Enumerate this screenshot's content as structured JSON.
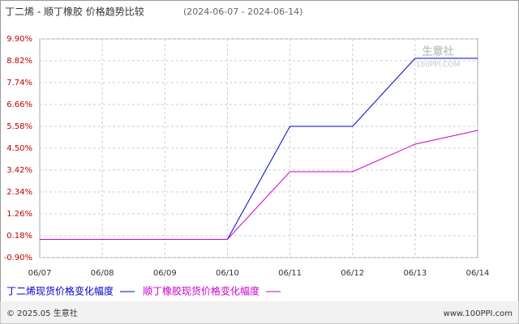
{
  "chart_data": {
    "type": "line",
    "title": "丁二烯 - 顺丁橡胶 价格趋势比较",
    "subtitle": "(2024-06-07 - 2024-06-14)",
    "x": [
      "06/07",
      "06/08",
      "06/09",
      "06/10",
      "06/11",
      "06/12",
      "06/13",
      "06/14"
    ],
    "series": [
      {
        "name": "丁二烯现货价格变化幅度",
        "color": "#0000cc",
        "values": [
          0,
          0,
          0,
          0,
          5.58,
          5.58,
          8.94,
          8.94
        ]
      },
      {
        "name": "顺丁橡胶现货价格变化幅度",
        "color": "#cc00cc",
        "values": [
          0,
          0,
          0,
          0,
          3.34,
          3.34,
          4.7,
          5.38
        ]
      }
    ],
    "ylim": [
      -0.9,
      9.9
    ],
    "yticks": [
      {
        "value": 9.9,
        "label": "9.90%"
      },
      {
        "value": 8.82,
        "label": "8.82%"
      },
      {
        "value": 7.74,
        "label": "7.74%"
      },
      {
        "value": 6.66,
        "label": "6.66%"
      },
      {
        "value": 5.58,
        "label": "5.58%"
      },
      {
        "value": 4.5,
        "label": "4.50%"
      },
      {
        "value": 3.42,
        "label": "3.42%"
      },
      {
        "value": 2.34,
        "label": "2.34%"
      },
      {
        "value": 1.26,
        "label": "1.26%"
      },
      {
        "value": 0.18,
        "label": "0.18%"
      },
      {
        "value": -0.9,
        "label": "-0.90%"
      }
    ],
    "grid": true,
    "watermark": [
      "生意社",
      "100PPI.COM"
    ],
    "footer_left": "© 2025.05 生意社",
    "footer_right": "www.100PPI.com"
  }
}
